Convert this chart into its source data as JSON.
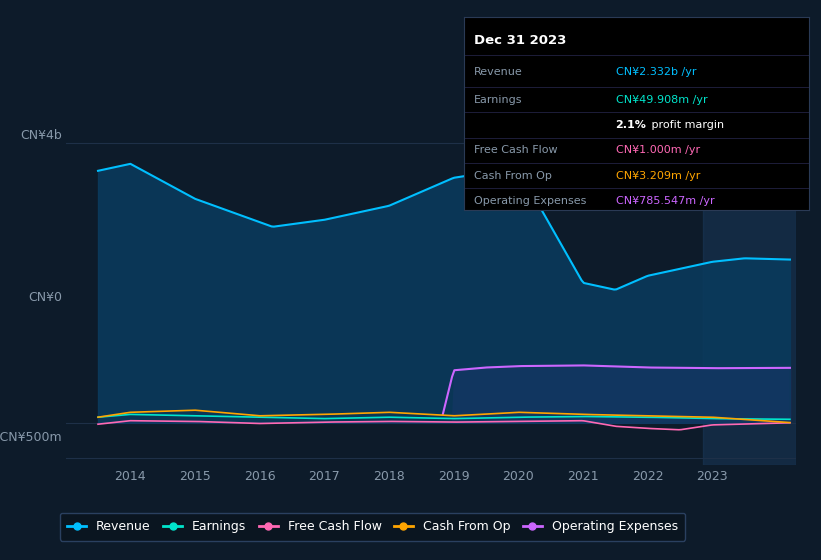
{
  "background_color": "#0d1b2a",
  "plot_bg_color": "#0d1b2a",
  "title": "Dec 31 2023",
  "ylim": [
    -600,
    4200
  ],
  "ytick_labels": [
    "-CN¥500m",
    "CN¥0",
    "CN¥4b"
  ],
  "xlim_min": 2013.0,
  "xlim_max": 2024.3,
  "xticks": [
    2014,
    2015,
    2016,
    2017,
    2018,
    2019,
    2020,
    2021,
    2022,
    2023
  ],
  "grid_color": "#1e3048",
  "info_box": {
    "title": "Dec 31 2023",
    "rows": [
      {
        "label": "Revenue",
        "value": "CN¥2.332b /yr",
        "value_color": "#00bfff"
      },
      {
        "label": "Earnings",
        "value": "CN¥49.908m /yr",
        "value_color": "#00e5cc"
      },
      {
        "label": "",
        "value": "2.1% profit margin",
        "value_color": "#ffffff",
        "bold_part": "2.1%"
      },
      {
        "label": "Free Cash Flow",
        "value": "CN¥1.000m /yr",
        "value_color": "#ff69b4"
      },
      {
        "label": "Cash From Op",
        "value": "CN¥3.209m /yr",
        "value_color": "#ffa500"
      },
      {
        "label": "Operating Expenses",
        "value": "CN¥785.547m /yr",
        "value_color": "#cc66ff"
      }
    ]
  },
  "series": {
    "revenue": {
      "color": "#00bfff",
      "fill_color": "#0a3a5c",
      "label": "Revenue"
    },
    "earnings": {
      "color": "#00e5cc",
      "label": "Earnings"
    },
    "free_cash_flow": {
      "color": "#ff69b4",
      "label": "Free Cash Flow"
    },
    "cash_from_op": {
      "color": "#ffa500",
      "label": "Cash From Op"
    },
    "operating_expenses": {
      "color": "#cc66ff",
      "fill_color": "#5a1a8c",
      "label": "Operating Expenses"
    }
  },
  "highlight_color": "#1a3a5c"
}
